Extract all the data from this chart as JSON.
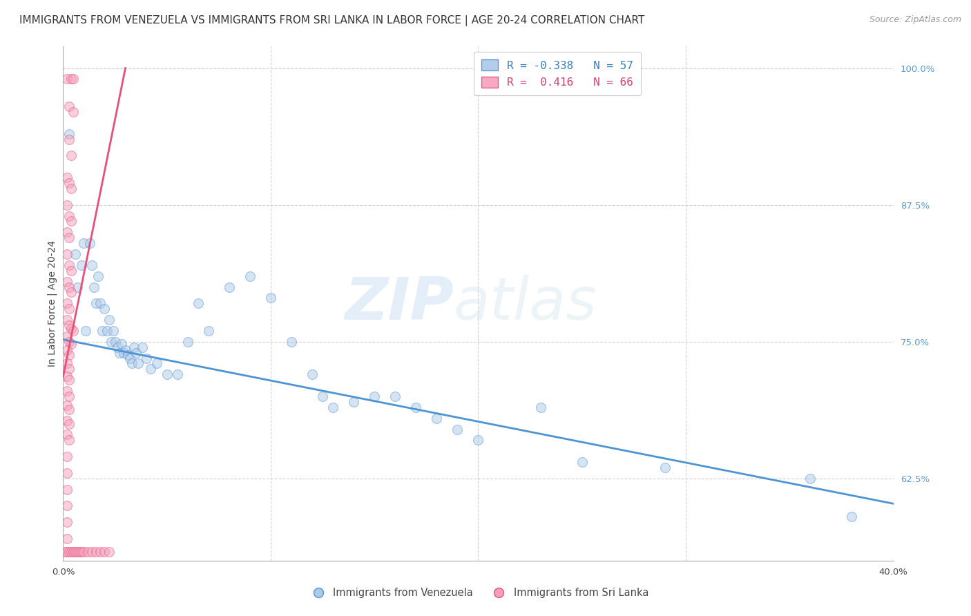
{
  "title": "IMMIGRANTS FROM VENEZUELA VS IMMIGRANTS FROM SRI LANKA IN LABOR FORCE | AGE 20-24 CORRELATION CHART",
  "source": "Source: ZipAtlas.com",
  "ylabel": "In Labor Force | Age 20-24",
  "xmin": 0.0,
  "xmax": 0.4,
  "ymin": 0.55,
  "ymax": 1.02,
  "xticks": [
    0.0,
    0.1,
    0.2,
    0.3,
    0.4
  ],
  "yticks_right": [
    1.0,
    0.875,
    0.75,
    0.625
  ],
  "yticklabels_right": [
    "100.0%",
    "87.5%",
    "75.0%",
    "62.5%"
  ],
  "watermark_zip": "ZIP",
  "watermark_atlas": "atlas",
  "blue_scatter": [
    [
      0.003,
      0.94
    ],
    [
      0.006,
      0.83
    ],
    [
      0.007,
      0.8
    ],
    [
      0.009,
      0.82
    ],
    [
      0.01,
      0.84
    ],
    [
      0.011,
      0.76
    ],
    [
      0.013,
      0.84
    ],
    [
      0.014,
      0.82
    ],
    [
      0.015,
      0.8
    ],
    [
      0.016,
      0.785
    ],
    [
      0.017,
      0.81
    ],
    [
      0.018,
      0.785
    ],
    [
      0.019,
      0.76
    ],
    [
      0.02,
      0.78
    ],
    [
      0.021,
      0.76
    ],
    [
      0.022,
      0.77
    ],
    [
      0.023,
      0.75
    ],
    [
      0.024,
      0.76
    ],
    [
      0.025,
      0.75
    ],
    [
      0.026,
      0.745
    ],
    [
      0.027,
      0.74
    ],
    [
      0.028,
      0.748
    ],
    [
      0.029,
      0.74
    ],
    [
      0.03,
      0.742
    ],
    [
      0.031,
      0.738
    ],
    [
      0.032,
      0.735
    ],
    [
      0.033,
      0.73
    ],
    [
      0.034,
      0.745
    ],
    [
      0.035,
      0.74
    ],
    [
      0.036,
      0.73
    ],
    [
      0.038,
      0.745
    ],
    [
      0.04,
      0.735
    ],
    [
      0.042,
      0.725
    ],
    [
      0.045,
      0.73
    ],
    [
      0.05,
      0.72
    ],
    [
      0.055,
      0.72
    ],
    [
      0.06,
      0.75
    ],
    [
      0.065,
      0.785
    ],
    [
      0.07,
      0.76
    ],
    [
      0.08,
      0.8
    ],
    [
      0.09,
      0.81
    ],
    [
      0.1,
      0.79
    ],
    [
      0.11,
      0.75
    ],
    [
      0.12,
      0.72
    ],
    [
      0.125,
      0.7
    ],
    [
      0.13,
      0.69
    ],
    [
      0.14,
      0.695
    ],
    [
      0.15,
      0.7
    ],
    [
      0.16,
      0.7
    ],
    [
      0.17,
      0.69
    ],
    [
      0.18,
      0.68
    ],
    [
      0.19,
      0.67
    ],
    [
      0.2,
      0.66
    ],
    [
      0.23,
      0.69
    ],
    [
      0.25,
      0.64
    ],
    [
      0.29,
      0.635
    ],
    [
      0.36,
      0.625
    ],
    [
      0.38,
      0.59
    ]
  ],
  "pink_scatter": [
    [
      0.002,
      0.99
    ],
    [
      0.004,
      0.99
    ],
    [
      0.005,
      0.99
    ],
    [
      0.003,
      0.965
    ],
    [
      0.005,
      0.96
    ],
    [
      0.003,
      0.935
    ],
    [
      0.004,
      0.92
    ],
    [
      0.002,
      0.9
    ],
    [
      0.003,
      0.895
    ],
    [
      0.004,
      0.89
    ],
    [
      0.002,
      0.875
    ],
    [
      0.003,
      0.865
    ],
    [
      0.004,
      0.86
    ],
    [
      0.002,
      0.85
    ],
    [
      0.003,
      0.845
    ],
    [
      0.002,
      0.83
    ],
    [
      0.003,
      0.82
    ],
    [
      0.004,
      0.815
    ],
    [
      0.002,
      0.805
    ],
    [
      0.003,
      0.8
    ],
    [
      0.004,
      0.795
    ],
    [
      0.002,
      0.785
    ],
    [
      0.003,
      0.78
    ],
    [
      0.002,
      0.77
    ],
    [
      0.003,
      0.765
    ],
    [
      0.004,
      0.762
    ],
    [
      0.005,
      0.76
    ],
    [
      0.002,
      0.755
    ],
    [
      0.003,
      0.75
    ],
    [
      0.004,
      0.748
    ],
    [
      0.002,
      0.742
    ],
    [
      0.003,
      0.738
    ],
    [
      0.002,
      0.73
    ],
    [
      0.003,
      0.725
    ],
    [
      0.002,
      0.718
    ],
    [
      0.003,
      0.715
    ],
    [
      0.002,
      0.705
    ],
    [
      0.003,
      0.7
    ],
    [
      0.002,
      0.692
    ],
    [
      0.003,
      0.688
    ],
    [
      0.002,
      0.678
    ],
    [
      0.003,
      0.675
    ],
    [
      0.002,
      0.665
    ],
    [
      0.003,
      0.66
    ],
    [
      0.002,
      0.645
    ],
    [
      0.002,
      0.63
    ],
    [
      0.002,
      0.615
    ],
    [
      0.002,
      0.6
    ],
    [
      0.002,
      0.585
    ],
    [
      0.002,
      0.57
    ],
    [
      0.001,
      0.558
    ],
    [
      0.002,
      0.558
    ],
    [
      0.003,
      0.558
    ],
    [
      0.004,
      0.558
    ],
    [
      0.005,
      0.558
    ],
    [
      0.006,
      0.558
    ],
    [
      0.007,
      0.558
    ],
    [
      0.008,
      0.558
    ],
    [
      0.009,
      0.558
    ],
    [
      0.01,
      0.558
    ],
    [
      0.012,
      0.558
    ],
    [
      0.014,
      0.558
    ],
    [
      0.016,
      0.558
    ],
    [
      0.018,
      0.558
    ],
    [
      0.02,
      0.558
    ],
    [
      0.022,
      0.558
    ]
  ],
  "blue_line_x": [
    0.0,
    0.4
  ],
  "blue_line_y": [
    0.752,
    0.602
  ],
  "pink_line_x": [
    0.0,
    0.03
  ],
  "pink_line_y": [
    0.718,
    1.0
  ],
  "scatter_size": 100,
  "scatter_alpha": 0.5,
  "blue_color": "#aec8e8",
  "blue_edge": "#4d94d4",
  "pink_color": "#f4a0bc",
  "pink_edge": "#e8507a",
  "grid_color": "#d0d0d0",
  "bg_color": "#ffffff",
  "title_fontsize": 11,
  "source_fontsize": 9,
  "label_fontsize": 10,
  "tick_fontsize": 9.5
}
